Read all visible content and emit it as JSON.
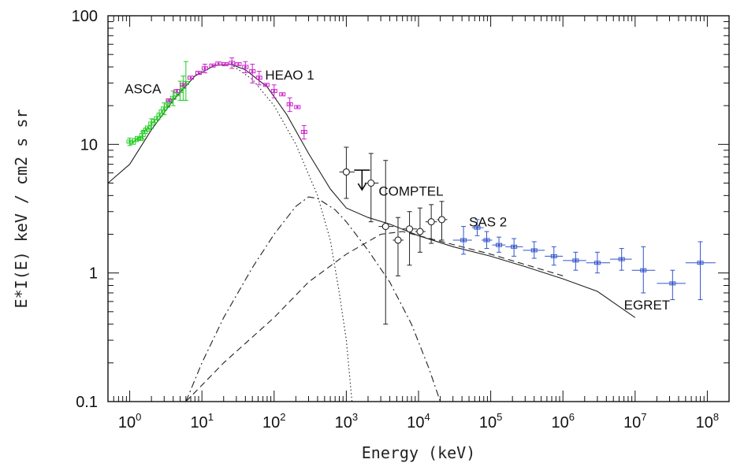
{
  "chart_data": {
    "type": "scatter",
    "title": "",
    "xlabel": "Energy (keV)",
    "ylabel": "E*I(E) keV / cm2 s sr",
    "xscale": "log",
    "yscale": "log",
    "xlim": [
      0.5,
      200000000
    ],
    "ylim": [
      0.1,
      100
    ],
    "grid": false,
    "x_tick_labels": [
      {
        "value": 1,
        "base": "10",
        "exp": "0"
      },
      {
        "value": 10,
        "base": "10",
        "exp": "1"
      },
      {
        "value": 100,
        "base": "10",
        "exp": "2"
      },
      {
        "value": 1000,
        "base": "10",
        "exp": "3"
      },
      {
        "value": 10000,
        "base": "10",
        "exp": "4"
      },
      {
        "value": 100000,
        "base": "10",
        "exp": "5"
      },
      {
        "value": 1000000,
        "base": "10",
        "exp": "6"
      },
      {
        "value": 10000000,
        "base": "10",
        "exp": "7"
      },
      {
        "value": 100000000,
        "base": "10",
        "exp": "8"
      }
    ],
    "y_tick_labels": [
      {
        "value": 0.1,
        "label": "0.1"
      },
      {
        "value": 1,
        "label": "1"
      },
      {
        "value": 10,
        "label": "10"
      },
      {
        "value": 100,
        "label": "100"
      }
    ],
    "annotations": [
      {
        "text": "ASCA",
        "x": 0.85,
        "y": 25
      },
      {
        "text": "HEAO 1",
        "x": 75,
        "y": 32
      },
      {
        "text": "COMPTEL",
        "x": 2800,
        "y": 4.0
      },
      {
        "text": "SAS 2",
        "x": 50000,
        "y": 2.3
      },
      {
        "text": "EGRET",
        "x": 7000000,
        "y": 0.52
      }
    ],
    "series": [
      {
        "name": "ASCA",
        "color": "#22cc22",
        "points": [
          [
            1.0,
            10.5
          ],
          [
            1.1,
            10.3
          ],
          [
            1.2,
            10.8
          ],
          [
            1.3,
            11.2
          ],
          [
            1.4,
            11.0
          ],
          [
            1.5,
            11.8
          ],
          [
            1.6,
            12.5
          ],
          [
            1.7,
            13.0
          ],
          [
            1.8,
            13.5
          ],
          [
            2.0,
            14.5
          ],
          [
            2.2,
            15.2
          ],
          [
            2.4,
            16.0
          ],
          [
            2.6,
            17.0
          ],
          [
            2.8,
            18.0
          ],
          [
            3.0,
            19.0
          ],
          [
            3.3,
            20.0
          ],
          [
            3.6,
            21.5
          ],
          [
            4.0,
            23.0
          ],
          [
            4.5,
            24.5
          ],
          [
            5.0,
            26.0
          ],
          [
            5.5,
            28.0
          ],
          [
            6.0,
            30.0
          ]
        ],
        "errors": [
          [
            1.0,
            9.8,
            11.2
          ],
          [
            1.5,
            11.0,
            12.6
          ],
          [
            2.0,
            13.3,
            15.8
          ],
          [
            3.0,
            17.0,
            21.0
          ],
          [
            4.0,
            20.0,
            26.0
          ],
          [
            5.0,
            22.0,
            31.0
          ],
          [
            5.5,
            22.0,
            34.0
          ],
          [
            6.0,
            22.0,
            44.0
          ]
        ]
      },
      {
        "name": "HEAO 1",
        "color": "#cc22cc",
        "points": [
          [
            3.5,
            22.0
          ],
          [
            4.5,
            26.0
          ],
          [
            5.5,
            29.0
          ],
          [
            7.0,
            33.0
          ],
          [
            9.0,
            36.0
          ],
          [
            11.0,
            39.0
          ],
          [
            14.0,
            41.0
          ],
          [
            17.0,
            42.5
          ],
          [
            21.0,
            42.0
          ],
          [
            26.0,
            43.0
          ],
          [
            32.0,
            42.0
          ],
          [
            40.0,
            40.0
          ],
          [
            50.0,
            37.0
          ],
          [
            62.0,
            33.0
          ],
          [
            78.0,
            29.0
          ],
          [
            100.0,
            26.0
          ],
          [
            130.0,
            24.5
          ],
          [
            165.0,
            20.5
          ],
          [
            210.0,
            19.5
          ],
          [
            260.0,
            12.5
          ]
        ],
        "errors": [
          [
            11.0,
            36.0,
            42.0
          ],
          [
            26.0,
            39.0,
            47.0
          ],
          [
            40.0,
            36.0,
            44.0
          ],
          [
            50.0,
            30.0,
            42.0
          ],
          [
            62.0,
            29.0,
            37.0
          ],
          [
            100.0,
            23.0,
            29.0
          ],
          [
            165.0,
            18.0,
            23.0
          ],
          [
            260.0,
            11.0,
            14.0
          ]
        ]
      },
      {
        "name": "COMPTEL",
        "color": "#222222",
        "marker": "circle",
        "points": [
          [
            1000,
            6.1
          ],
          [
            2200,
            5.0
          ],
          [
            3500,
            2.3
          ],
          [
            5200,
            1.8
          ],
          [
            7500,
            2.2
          ],
          [
            10500,
            2.1
          ],
          [
            15000,
            2.5
          ],
          [
            21000,
            2.6
          ]
        ],
        "errors": [
          [
            1000,
            3.8,
            9.5
          ],
          [
            2200,
            2.5,
            8.5
          ],
          [
            3500,
            0.4,
            7.5
          ],
          [
            5200,
            0.95,
            2.7
          ],
          [
            7500,
            1.15,
            3.0
          ],
          [
            10500,
            1.45,
            3.2
          ],
          [
            15000,
            1.7,
            3.4
          ],
          [
            21000,
            1.8,
            3.6
          ]
        ],
        "xerr": [
          [
            1000,
            800,
            1300
          ],
          [
            2200,
            1800,
            2800
          ],
          [
            3500,
            2800,
            4500
          ],
          [
            5200,
            4400,
            6200
          ],
          [
            7500,
            6000,
            9500
          ],
          [
            10500,
            9000,
            12500
          ],
          [
            15000,
            12500,
            18000
          ],
          [
            21000,
            18000,
            25000
          ]
        ],
        "upper_limit": [
          1650,
          6.3
        ]
      },
      {
        "name": "SAS 2",
        "color": "#3355cc",
        "points": [
          [
            42000,
            1.8
          ],
          [
            65000,
            2.25
          ],
          [
            88000,
            1.8
          ],
          [
            130000,
            1.65
          ],
          [
            210000,
            1.6
          ],
          [
            400000,
            1.5
          ],
          [
            750000,
            1.35
          ],
          [
            1500000,
            1.25
          ],
          [
            3000000,
            1.2
          ],
          [
            6500000,
            1.28
          ],
          [
            13000000,
            1.05
          ],
          [
            33000000,
            0.83
          ],
          [
            80000000,
            1.2
          ]
        ],
        "errors": [
          [
            42000,
            1.4,
            2.3
          ],
          [
            65000,
            1.95,
            2.6
          ],
          [
            88000,
            1.55,
            2.1
          ],
          [
            130000,
            1.45,
            1.9
          ],
          [
            210000,
            1.35,
            1.85
          ],
          [
            400000,
            1.3,
            1.75
          ],
          [
            750000,
            1.15,
            1.6
          ],
          [
            1500000,
            1.05,
            1.45
          ],
          [
            3000000,
            1.0,
            1.45
          ],
          [
            6500000,
            1.05,
            1.55
          ],
          [
            13000000,
            0.7,
            1.6
          ],
          [
            33000000,
            0.62,
            1.05
          ],
          [
            80000000,
            0.62,
            1.75
          ]
        ],
        "xerr": [
          [
            42000,
            30000,
            55000
          ],
          [
            65000,
            55000,
            80000
          ],
          [
            88000,
            75000,
            105000
          ],
          [
            130000,
            105000,
            160000
          ],
          [
            210000,
            160000,
            280000
          ],
          [
            400000,
            280000,
            560000
          ],
          [
            750000,
            560000,
            1000000
          ],
          [
            1500000,
            1000000,
            2100000
          ],
          [
            3000000,
            2100000,
            4500000
          ],
          [
            6500000,
            4500000,
            9000000
          ],
          [
            13000000,
            9000000,
            19000000
          ],
          [
            33000000,
            20000000,
            50000000
          ],
          [
            80000000,
            50000000,
            130000000
          ]
        ]
      }
    ],
    "curves": [
      {
        "name": "total",
        "style": "solid",
        "points": [
          [
            0.5,
            5.0
          ],
          [
            1,
            7.0
          ],
          [
            2,
            13.0
          ],
          [
            4,
            22.0
          ],
          [
            8,
            34.0
          ],
          [
            15,
            41.0
          ],
          [
            25,
            42.0
          ],
          [
            40,
            38.0
          ],
          [
            80,
            28.0
          ],
          [
            150,
            17.0
          ],
          [
            300,
            8.5
          ],
          [
            600,
            4.5
          ],
          [
            1000,
            3.2
          ],
          [
            2000,
            2.7
          ],
          [
            4000,
            2.4
          ],
          [
            10000,
            1.95
          ],
          [
            30000,
            1.6
          ],
          [
            100000,
            1.35
          ],
          [
            300000,
            1.12
          ],
          [
            1000000,
            0.9
          ],
          [
            3000000,
            0.72
          ],
          [
            10000000,
            0.45
          ]
        ]
      },
      {
        "name": "dotted",
        "style": "dotted",
        "points": [
          [
            25,
            42.0
          ],
          [
            50,
            32.0
          ],
          [
            100,
            20.0
          ],
          [
            200,
            10.0
          ],
          [
            400,
            4.0
          ],
          [
            600,
            1.8
          ],
          [
            800,
            0.7
          ],
          [
            1000,
            0.3
          ],
          [
            1200,
            0.1
          ]
        ]
      },
      {
        "name": "dash-dot",
        "style": "dashdot",
        "points": [
          [
            6,
            0.1
          ],
          [
            10,
            0.2
          ],
          [
            20,
            0.45
          ],
          [
            50,
            1.1
          ],
          [
            100,
            2.0
          ],
          [
            200,
            3.3
          ],
          [
            300,
            3.9
          ],
          [
            400,
            3.8
          ],
          [
            700,
            3.1
          ],
          [
            1000,
            2.5
          ],
          [
            2000,
            1.5
          ],
          [
            4000,
            0.85
          ],
          [
            8000,
            0.4
          ],
          [
            14000,
            0.18
          ],
          [
            20000,
            0.1
          ]
        ]
      },
      {
        "name": "dashed",
        "style": "dashed",
        "points": [
          [
            6,
            0.1
          ],
          [
            20,
            0.2
          ],
          [
            100,
            0.45
          ],
          [
            300,
            0.85
          ],
          [
            1000,
            1.4
          ],
          [
            3000,
            2.0
          ],
          [
            6000,
            2.1
          ],
          [
            10000,
            1.95
          ],
          [
            100000,
            1.4
          ],
          [
            1000000,
            0.95
          ]
        ]
      }
    ]
  }
}
